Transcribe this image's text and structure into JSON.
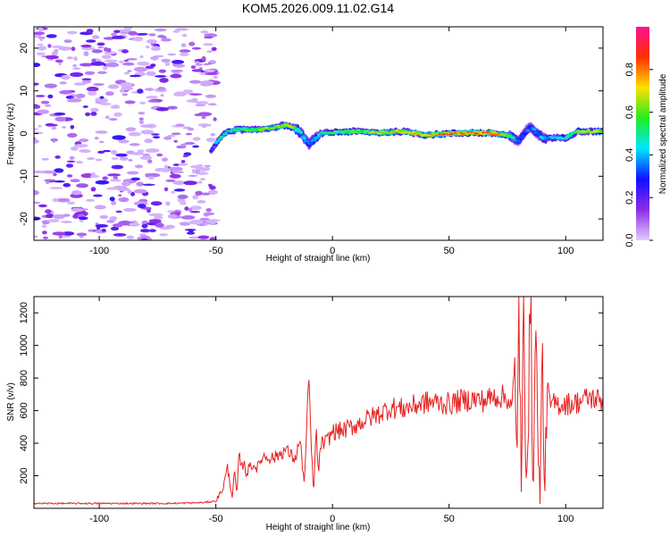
{
  "title": "KOM5.2026.009.11.02.G14",
  "chart_data": [
    {
      "type": "heatmap",
      "xlabel": "Height of straight line (km)",
      "ylabel": "Frequency (Hz)",
      "xlim": [
        -128,
        116
      ],
      "ylim": [
        -25,
        25
      ],
      "x_ticks": [
        -100,
        -50,
        0,
        50,
        100
      ],
      "y_ticks": [
        -20,
        -10,
        0,
        10,
        20
      ],
      "colorbar": {
        "label": "Normalized spectral amplitude",
        "ticks": [
          "0.0",
          "0.2",
          "0.4",
          "0.6",
          "0.8"
        ],
        "range": [
          0,
          1
        ],
        "colors": [
          "#e0ccff",
          "#8e2be8",
          "#1010ff",
          "#00e5ff",
          "#22ee22",
          "#ffe000",
          "#ff3000",
          "#ff1090"
        ]
      },
      "noise_region": {
        "x_range": [
          -128,
          -50
        ],
        "y_range": [
          -25,
          25
        ],
        "amplitude": [
          0.02,
          0.25
        ]
      },
      "ridge": {
        "x": [
          -52,
          -48,
          -45,
          -40,
          -35,
          -30,
          -25,
          -20,
          -15,
          -12,
          -10,
          -8,
          -5,
          0,
          10,
          20,
          30,
          40,
          50,
          60,
          70,
          76,
          80,
          82,
          85,
          88,
          90,
          95,
          100,
          105,
          110,
          116
        ],
        "frequency": [
          -4,
          -1,
          0.5,
          1,
          0.8,
          1,
          1.5,
          2,
          1,
          -1,
          -2.5,
          -1.5,
          0,
          0.3,
          0.5,
          0.2,
          0.5,
          -0.3,
          0,
          0.2,
          0,
          -0.5,
          -2,
          0,
          1.5,
          0,
          -1,
          -1,
          -1,
          0.5,
          0.5,
          0.5
        ],
        "amplitude": [
          0.25,
          0.5,
          0.45,
          0.55,
          0.6,
          0.65,
          0.6,
          0.7,
          0.5,
          0.4,
          0.35,
          0.4,
          0.5,
          0.55,
          0.6,
          0.65,
          0.7,
          0.75,
          0.8,
          0.85,
          0.8,
          0.55,
          0.3,
          0.3,
          0.35,
          0.35,
          0.4,
          0.4,
          0.5,
          0.6,
          0.65,
          0.65
        ]
      }
    },
    {
      "type": "line",
      "xlabel": "Height of straight line (km)",
      "ylabel": "SNR (v/v)",
      "xlim": [
        -128,
        116
      ],
      "ylim": [
        0,
        1300
      ],
      "x_ticks": [
        -100,
        -50,
        0,
        50,
        100
      ],
      "y_ticks": [
        200,
        400,
        600,
        800,
        1000,
        1200
      ],
      "color": "#e82020",
      "series": [
        {
          "x": [
            -128,
            -110,
            -90,
            -70,
            -55,
            -50,
            -47,
            -45,
            -44,
            -43,
            -42,
            -41,
            -40,
            -39,
            -38,
            -37,
            -35,
            -32,
            -30,
            -25,
            -20,
            -16,
            -14,
            -12,
            -11,
            -10,
            -9,
            -8,
            -7,
            -6,
            -5,
            -4,
            -2,
            0,
            5,
            10,
            15,
            20,
            25,
            30,
            35,
            40,
            45,
            50,
            55,
            60,
            65,
            70,
            75,
            77,
            78,
            79,
            80,
            81,
            82,
            83,
            84,
            85,
            86,
            87,
            88,
            89,
            90,
            91,
            92,
            93,
            95,
            100,
            105,
            110,
            116
          ],
          "y": [
            30,
            30,
            30,
            30,
            35,
            45,
            120,
            250,
            160,
            70,
            220,
            80,
            330,
            240,
            290,
            210,
            270,
            250,
            320,
            310,
            360,
            300,
            420,
            150,
            520,
            790,
            330,
            100,
            480,
            200,
            410,
            390,
            420,
            470,
            480,
            510,
            550,
            580,
            620,
            610,
            630,
            650,
            650,
            640,
            660,
            670,
            660,
            690,
            680,
            610,
            850,
            300,
            1270,
            40,
            1200,
            200,
            600,
            1260,
            40,
            1050,
            550,
            30,
            950,
            20,
            800,
            630,
            640,
            640,
            650,
            680,
            660
          ]
        }
      ]
    }
  ]
}
